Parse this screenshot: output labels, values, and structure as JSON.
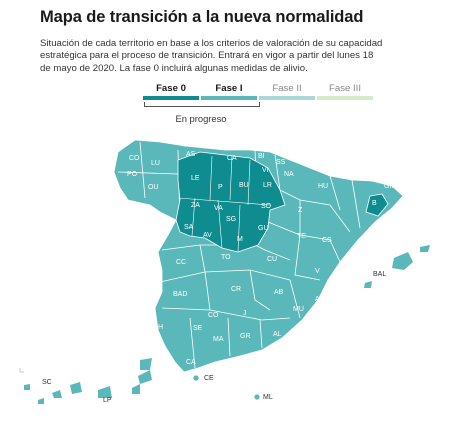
{
  "header": {
    "title": "Mapa de transición a la nueva normalidad",
    "subtitle": "Situación de cada territorio en base a los criterios de valoración de su capacidad estratégica para el proceso de transición. Entrará en vigor a partir del lunes 18 de mayo de 2020. La fase 0 incluirá algunas medidas de alivio."
  },
  "legend": {
    "items": [
      {
        "label": "Fase 0",
        "color": "#0e8c8f",
        "bold": true
      },
      {
        "label": "Fase I",
        "color": "#5ab8ba",
        "bold": true
      },
      {
        "label": "Fase II",
        "color": "#a9d8d6",
        "bold": false
      },
      {
        "label": "Fase III",
        "color": "#d4ecc8",
        "bold": false
      }
    ],
    "progress_label": "En progreso"
  },
  "colors": {
    "phase0": "#0e8c8f",
    "phase1": "#5ab8ba",
    "phase2": "#a9d8d6",
    "phase3": "#d4ecc8",
    "border": "#ffffff"
  },
  "map": {
    "provinces": [
      "CO",
      "LU",
      "AS",
      "CA",
      "BI",
      "SS",
      "PO",
      "OU",
      "LE",
      "P",
      "BU",
      "VI",
      "NA",
      "LR",
      "HU",
      "GIR",
      "B",
      "ZA",
      "VA",
      "SO",
      "Z",
      "SA",
      "SG",
      "AV",
      "M",
      "GU",
      "TE",
      "CC",
      "TO",
      "CU",
      "CS",
      "V",
      "BAD",
      "CR",
      "AB",
      "A",
      "MU",
      "H",
      "SE",
      "CO",
      "J",
      "GR",
      "AL",
      "MA",
      "CA",
      "SC",
      "LP",
      "BAL",
      "CE",
      "ML"
    ],
    "phase0_provinces": [
      "LE",
      "P",
      "BU",
      "ZA",
      "VA",
      "SO",
      "SA",
      "SG",
      "AV",
      "M",
      "B"
    ]
  }
}
